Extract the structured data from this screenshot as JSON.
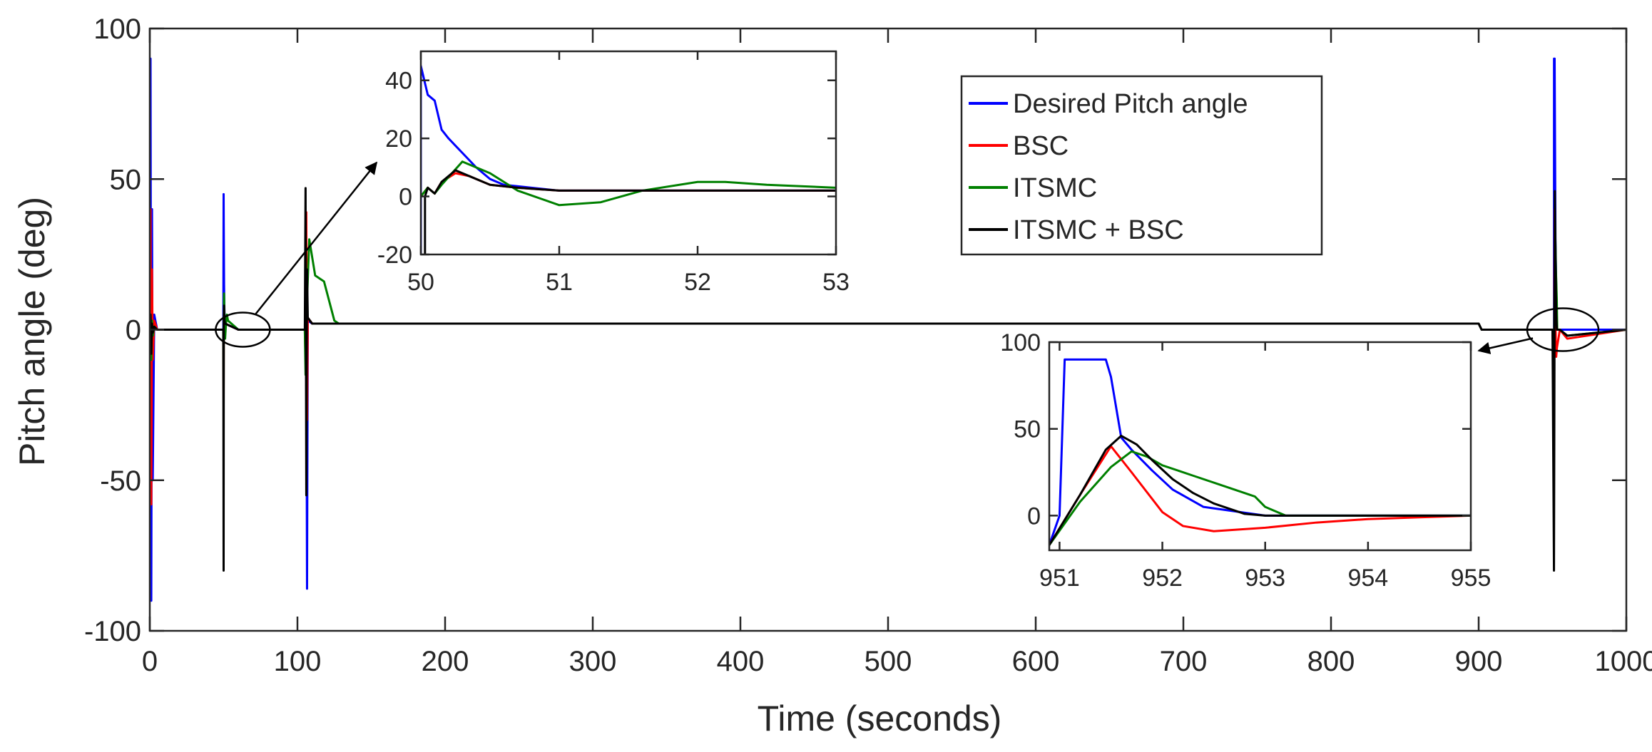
{
  "chart_data": {
    "type": "line",
    "title": "",
    "xlabel": "Time (seconds)",
    "ylabel": "Pitch angle (deg)",
    "xlim": [
      0,
      1000
    ],
    "ylim": [
      -100,
      100
    ],
    "xticks": [
      0,
      100,
      200,
      300,
      400,
      500,
      600,
      700,
      800,
      900,
      1000
    ],
    "xtick_labels": [
      "0",
      "100",
      "200",
      "300",
      "400",
      "500",
      "600",
      "700",
      "800",
      "900",
      "1000"
    ],
    "yticks": [
      -100,
      -50,
      0,
      50,
      100
    ],
    "ytick_labels": [
      "-100",
      "-50",
      "0",
      "50",
      "100"
    ],
    "grid": false,
    "legend_position": "top-center-right",
    "series": [
      {
        "name": "Desired Pitch angle",
        "color": "#0000ff",
        "x": [
          0,
          0.5,
          1,
          1.5,
          2,
          3,
          5,
          10,
          49.8,
          50.0,
          50.1,
          50.3,
          50.6,
          51,
          60,
          105,
          105.5,
          106,
          106.5,
          107,
          110,
          150,
          900,
          902,
          950,
          951.0,
          951.05,
          951.45,
          952,
          953,
          955,
          960,
          1000
        ],
        "y": [
          0,
          90,
          -90,
          40,
          -50,
          5,
          0,
          0,
          0,
          45,
          34,
          15,
          4,
          2,
          0,
          0,
          -5,
          5,
          -86,
          3,
          2,
          2,
          2,
          0,
          0,
          0,
          90,
          90,
          30,
          0,
          0,
          0,
          0
        ]
      },
      {
        "name": "BSC",
        "color": "#ff0000",
        "x": [
          0,
          0.5,
          1,
          1.5,
          2,
          3,
          5,
          10,
          49.8,
          50.0,
          50.1,
          50.3,
          50.6,
          51,
          60,
          105,
          105.5,
          106,
          106.5,
          107,
          110,
          150,
          900,
          902,
          950,
          951.0,
          951.5,
          952,
          952.5,
          953,
          955,
          960,
          1000
        ],
        "y": [
          0,
          40,
          -58,
          20,
          -10,
          3,
          0,
          0,
          0,
          -25,
          2,
          8,
          3,
          2,
          0,
          0,
          -10,
          39,
          -30,
          4,
          2,
          2,
          2,
          0,
          0,
          -16,
          40,
          2,
          -9,
          -6,
          0,
          -3,
          0
        ]
      },
      {
        "name": "ITSMC",
        "color": "#008000",
        "x": [
          0,
          0.5,
          1,
          1.5,
          2,
          3,
          5,
          10,
          49.8,
          50.0,
          50.1,
          50.3,
          50.6,
          51,
          51.6,
          52.2,
          53,
          60,
          105,
          105.5,
          106,
          106.5,
          108,
          112,
          118,
          125,
          128,
          150,
          900,
          902,
          950,
          951.0,
          951.7,
          952.3,
          952.9,
          953.2,
          955,
          960,
          1000
        ],
        "y": [
          0,
          5,
          -10,
          3,
          -2,
          1,
          0,
          0,
          0,
          -20,
          3,
          12,
          4,
          -3,
          2,
          5,
          3,
          0,
          0,
          -15,
          20,
          10,
          30,
          18,
          16,
          3,
          2,
          2,
          2,
          0,
          0,
          -16,
          37,
          20,
          10,
          0,
          0,
          -2,
          0
        ]
      },
      {
        "name": "ITSMC + BSC",
        "color": "#000000",
        "x": [
          0,
          0.5,
          1,
          1.5,
          2,
          3,
          5,
          10,
          49.8,
          50.0,
          50.1,
          50.3,
          50.6,
          51,
          60,
          105,
          105.5,
          106,
          106.5,
          107,
          110,
          150,
          900,
          902,
          950,
          951.0,
          951.6,
          952,
          952.5,
          953,
          955,
          960,
          1000
        ],
        "y": [
          0,
          5,
          -8,
          2,
          -1,
          1,
          0,
          0,
          0,
          -80,
          2,
          8,
          3,
          2,
          0,
          0,
          47,
          -55,
          20,
          4,
          2,
          2,
          2,
          0,
          0,
          -80,
          46,
          25,
          5,
          0,
          0,
          -2,
          0
        ]
      }
    ],
    "insets": [
      {
        "xlim": [
          50,
          53
        ],
        "ylim": [
          -20,
          50
        ],
        "xticks": [
          50,
          51,
          52,
          53
        ],
        "xtick_labels": [
          "50",
          "51",
          "52",
          "53"
        ],
        "yticks": [
          -20,
          0,
          20,
          40
        ],
        "ytick_labels": [
          "-20",
          "0",
          "20",
          "40"
        ],
        "series": [
          {
            "name": "Desired Pitch angle",
            "color": "#0000ff",
            "x": [
              50.0,
              50.0,
              50.05,
              50.1,
              50.15,
              50.2,
              50.3,
              50.4,
              50.5,
              50.6,
              50.8,
              51.0,
              51.5,
              52.0,
              53.0
            ],
            "y": [
              -20,
              45,
              35,
              33,
              23,
              20,
              15,
              10,
              6,
              4,
              3,
              2,
              2,
              2,
              2
            ]
          },
          {
            "name": "BSC",
            "color": "#ff0000",
            "x": [
              50.0,
              50.05,
              50.1,
              50.15,
              50.25,
              50.35,
              50.5,
              50.7,
              51.0,
              51.5,
              52.0,
              53.0
            ],
            "y": [
              0,
              3,
              1,
              5,
              8,
              7,
              4,
              3,
              2,
              2,
              2,
              2
            ]
          },
          {
            "name": "ITSMC",
            "color": "#008000",
            "x": [
              50.0,
              50.05,
              50.1,
              50.15,
              50.3,
              50.5,
              50.7,
              51.0,
              51.3,
              51.6,
              52.0,
              52.2,
              52.5,
              53.0
            ],
            "y": [
              0,
              3,
              1,
              4,
              12,
              8,
              2,
              -3,
              -2,
              2,
              5,
              5,
              4,
              3
            ]
          },
          {
            "name": "ITSMC + BSC",
            "color": "#000000",
            "x": [
              50.03,
              50.03,
              50.05,
              50.1,
              50.15,
              50.25,
              50.35,
              50.5,
              50.7,
              51.0,
              51.5,
              52.0,
              53.0
            ],
            "y": [
              -20,
              0,
              3,
              1,
              5,
              9,
              7,
              4,
              3,
              2,
              2,
              2,
              2
            ]
          }
        ]
      },
      {
        "xlim": [
          950.9,
          955
        ],
        "ylim": [
          -20,
          100
        ],
        "xticks": [
          951,
          952,
          953,
          954,
          955
        ],
        "xtick_labels": [
          "951",
          "952",
          "953",
          "954",
          "955"
        ],
        "yticks": [
          0,
          50,
          100
        ],
        "ytick_labels": [
          "0",
          "50",
          "100"
        ],
        "series": [
          {
            "name": "Desired Pitch angle",
            "color": "#0000ff",
            "x": [
              950.9,
              951.0,
              951.05,
              951.45,
              951.5,
              951.6,
              951.7,
              951.9,
              952.1,
              952.4,
              953.0,
              955.0
            ],
            "y": [
              -17,
              0,
              90,
              90,
              80,
              45,
              38,
              26,
              15,
              5,
              0,
              0
            ]
          },
          {
            "name": "BSC",
            "color": "#ff0000",
            "x": [
              950.9,
              951.2,
              951.5,
              951.7,
              952.0,
              952.2,
              952.5,
              953.0,
              953.5,
              954.0,
              954.5,
              955.0
            ],
            "y": [
              -17,
              12,
              40,
              25,
              2,
              -6,
              -9,
              -7,
              -4,
              -2,
              -1,
              0
            ]
          },
          {
            "name": "ITSMC",
            "color": "#008000",
            "x": [
              950.9,
              951.2,
              951.5,
              951.7,
              951.85,
              952.0,
              952.3,
              952.6,
              952.9,
              953.0,
              953.2,
              953.5,
              954.0,
              955.0
            ],
            "y": [
              -17,
              8,
              28,
              37,
              34,
              29,
              23,
              17,
              11,
              5,
              0,
              0,
              0,
              0
            ]
          },
          {
            "name": "ITSMC + BSC",
            "color": "#000000",
            "x": [
              950.9,
              951.2,
              951.45,
              951.6,
              951.75,
              951.9,
              952.1,
              952.3,
              952.5,
              952.8,
              953.0,
              954.0,
              955.0
            ],
            "y": [
              -17,
              12,
              38,
              46,
              41,
              32,
              21,
              13,
              7,
              1,
              0,
              0,
              0
            ]
          }
        ]
      }
    ]
  }
}
